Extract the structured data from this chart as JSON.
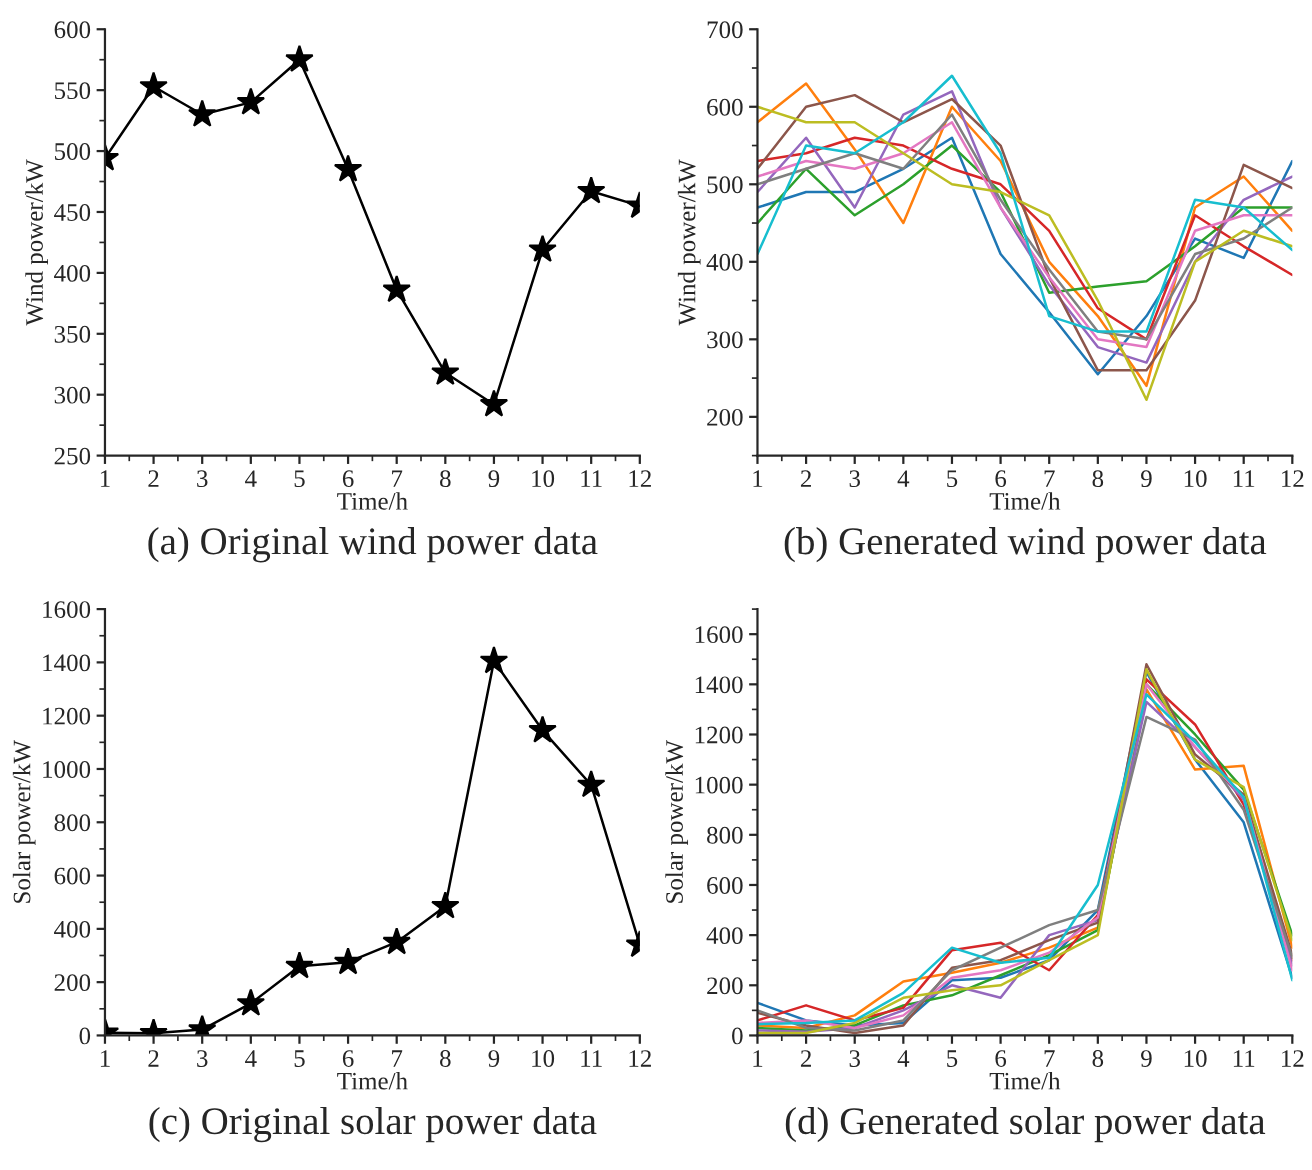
{
  "chart_data": [
    {
      "type": "line",
      "title": "(a) Original wind power data",
      "xlabel": "Time/h",
      "ylabel": "Wind power/kW",
      "x": [
        1,
        2,
        3,
        4,
        5,
        6,
        7,
        8,
        9,
        10,
        11,
        12
      ],
      "xlim": [
        1,
        12
      ],
      "xticks": [
        1,
        2,
        3,
        4,
        5,
        6,
        7,
        8,
        9,
        10,
        11,
        12
      ],
      "ylim": [
        250,
        600
      ],
      "yticks": [
        250,
        300,
        350,
        400,
        450,
        500,
        550,
        600
      ],
      "marker": "star",
      "grid": false,
      "legend": false,
      "series": [
        {
          "color": "#000000",
          "values": [
            494,
            553,
            530,
            540,
            575,
            485,
            386,
            318,
            292,
            419,
            467,
            455
          ]
        }
      ]
    },
    {
      "type": "line",
      "title": "(b) Generated wind power data",
      "xlabel": "Time/h",
      "ylabel": "Wind power/kW",
      "x": [
        1,
        2,
        3,
        4,
        5,
        6,
        7,
        8,
        9,
        10,
        11,
        12
      ],
      "xlim": [
        1,
        12
      ],
      "xticks": [
        1,
        2,
        3,
        4,
        5,
        6,
        7,
        8,
        9,
        10,
        11,
        12
      ],
      "ylim": [
        150,
        700
      ],
      "yticks": [
        200,
        300,
        400,
        500,
        600,
        700
      ],
      "grid": false,
      "legend": false,
      "series": [
        {
          "color": "#1f77b4",
          "values": [
            470,
            490,
            490,
            520,
            560,
            410,
            335,
            255,
            330,
            430,
            405,
            530
          ]
        },
        {
          "color": "#ff7f0e",
          "values": [
            580,
            630,
            545,
            450,
            600,
            530,
            400,
            330,
            240,
            470,
            510,
            440
          ]
        },
        {
          "color": "#2ca02c",
          "values": [
            450,
            520,
            460,
            500,
            550,
            490,
            360,
            368,
            375,
            420,
            470,
            470
          ]
        },
        {
          "color": "#d62728",
          "values": [
            530,
            540,
            560,
            550,
            520,
            500,
            440,
            340,
            300,
            460,
            420,
            383
          ]
        },
        {
          "color": "#9467bd",
          "values": [
            490,
            560,
            470,
            590,
            620,
            470,
            370,
            290,
            270,
            400,
            480,
            510
          ]
        },
        {
          "color": "#8c564b",
          "values": [
            520,
            600,
            615,
            580,
            610,
            550,
            380,
            260,
            260,
            350,
            525,
            495
          ]
        },
        {
          "color": "#e377c2",
          "values": [
            510,
            530,
            520,
            540,
            580,
            470,
            380,
            300,
            290,
            440,
            460,
            460
          ]
        },
        {
          "color": "#7f7f7f",
          "values": [
            500,
            520,
            540,
            520,
            590,
            480,
            390,
            310,
            300,
            410,
            430,
            470
          ]
        },
        {
          "color": "#bcbd22",
          "values": [
            600,
            580,
            580,
            540,
            500,
            490,
            460,
            350,
            222,
            400,
            440,
            420
          ]
        },
        {
          "color": "#17becf",
          "values": [
            410,
            550,
            540,
            580,
            640,
            540,
            330,
            310,
            310,
            480,
            470,
            415
          ]
        }
      ]
    },
    {
      "type": "line",
      "title": "(c) Original solar power data",
      "xlabel": "Time/h",
      "ylabel": "Solar power/kW",
      "x": [
        1,
        2,
        3,
        4,
        5,
        6,
        7,
        8,
        9,
        10,
        11,
        12
      ],
      "xlim": [
        1,
        12
      ],
      "xticks": [
        1,
        2,
        3,
        4,
        5,
        6,
        7,
        8,
        9,
        10,
        11,
        12
      ],
      "ylim": [
        0,
        1600
      ],
      "yticks": [
        0,
        200,
        400,
        600,
        800,
        1000,
        1200,
        1400,
        1600
      ],
      "marker": "star",
      "grid": false,
      "legend": false,
      "series": [
        {
          "color": "#000000",
          "values": [
            10,
            8,
            22,
            120,
            260,
            275,
            350,
            485,
            1405,
            1145,
            940,
            340
          ]
        }
      ]
    },
    {
      "type": "line",
      "title": "(d) Generated solar power data",
      "xlabel": "Time/h",
      "ylabel": "Solar power/kW",
      "x": [
        1,
        2,
        3,
        4,
        5,
        6,
        7,
        8,
        9,
        10,
        11,
        12
      ],
      "xlim": [
        1,
        12
      ],
      "xticks": [
        1,
        2,
        3,
        4,
        5,
        6,
        7,
        8,
        9,
        10,
        11,
        12
      ],
      "ylim": [
        0,
        1700
      ],
      "yticks": [
        0,
        200,
        400,
        600,
        800,
        1000,
        1200,
        1400,
        1600
      ],
      "grid": false,
      "legend": false,
      "series": [
        {
          "color": "#1f77b4",
          "values": [
            130,
            60,
            40,
            50,
            220,
            230,
            300,
            500,
            1450,
            1100,
            850,
            230
          ]
        },
        {
          "color": "#ff7f0e",
          "values": [
            40,
            30,
            80,
            215,
            250,
            290,
            350,
            430,
            1380,
            1060,
            1075,
            350
          ]
        },
        {
          "color": "#2ca02c",
          "values": [
            30,
            20,
            40,
            120,
            160,
            240,
            320,
            420,
            1400,
            1200,
            980,
            400
          ]
        },
        {
          "color": "#d62728",
          "values": [
            60,
            120,
            60,
            110,
            340,
            370,
            260,
            480,
            1420,
            1240,
            920,
            300
          ]
        },
        {
          "color": "#9467bd",
          "values": [
            20,
            15,
            30,
            100,
            200,
            150,
            400,
            460,
            1330,
            1150,
            940,
            280
          ]
        },
        {
          "color": "#8c564b",
          "values": [
            90,
            40,
            10,
            40,
            270,
            300,
            380,
            450,
            1480,
            1120,
            960,
            320
          ]
        },
        {
          "color": "#e377c2",
          "values": [
            50,
            60,
            30,
            80,
            230,
            260,
            330,
            470,
            1400,
            1150,
            950,
            260
          ]
        },
        {
          "color": "#7f7f7f",
          "values": [
            100,
            30,
            20,
            60,
            260,
            350,
            440,
            500,
            1270,
            1180,
            900,
            310
          ]
        },
        {
          "color": "#bcbd22",
          "values": [
            10,
            10,
            50,
            150,
            180,
            200,
            300,
            400,
            1460,
            1100,
            990,
            380
          ]
        },
        {
          "color": "#17becf",
          "values": [
            45,
            50,
            60,
            170,
            350,
            290,
            310,
            600,
            1360,
            1170,
            950,
            220
          ]
        }
      ]
    }
  ]
}
